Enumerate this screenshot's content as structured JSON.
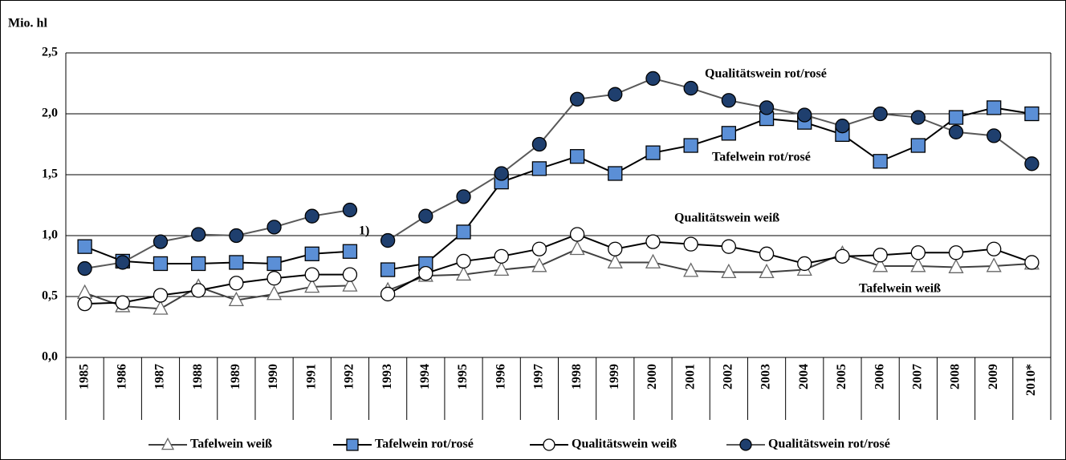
{
  "chart_data": {
    "type": "line",
    "y_label": "Mio. hl",
    "categories": [
      "1985",
      "1986",
      "1987",
      "1988",
      "1989",
      "1990",
      "1991",
      "1992",
      "1993",
      "1994",
      "1995",
      "1996",
      "1997",
      "1998",
      "1999",
      "2000",
      "2001",
      "2002",
      "2003",
      "2004",
      "2005",
      "2006",
      "2007",
      "2008",
      "2009",
      "2010*"
    ],
    "break_after": "1992",
    "series": [
      {
        "name": "Tafelwein weiß",
        "marker": "triangle",
        "color": "#ffffff",
        "line_color": "#404040",
        "values": [
          0.53,
          0.42,
          0.4,
          0.58,
          0.47,
          0.52,
          0.58,
          0.59,
          0.55,
          0.67,
          0.68,
          0.72,
          0.75,
          0.89,
          0.78,
          0.78,
          0.71,
          0.7,
          0.7,
          0.72,
          0.85,
          0.75,
          0.75,
          0.74,
          0.75,
          0.77
        ]
      },
      {
        "name": "Tafelwein rot/rosé",
        "marker": "square",
        "color": "#5b8fd6",
        "line_color": "#000000",
        "values": [
          0.91,
          0.79,
          0.77,
          0.77,
          0.78,
          0.77,
          0.85,
          0.87,
          0.72,
          0.77,
          1.03,
          1.44,
          1.55,
          1.65,
          1.51,
          1.68,
          1.74,
          1.84,
          1.96,
          1.93,
          1.83,
          1.61,
          1.74,
          1.97,
          2.05,
          2.0
        ]
      },
      {
        "name": "Qualitätswein weiß",
        "marker": "circle",
        "color": "#ffffff",
        "line_color": "#000000",
        "values": [
          0.44,
          0.45,
          0.51,
          0.55,
          0.61,
          0.65,
          0.68,
          0.68,
          0.52,
          0.69,
          0.79,
          0.83,
          0.89,
          1.01,
          0.89,
          0.95,
          0.93,
          0.91,
          0.85,
          0.77,
          0.83,
          0.84,
          0.86,
          0.86,
          0.89,
          0.78
        ]
      },
      {
        "name": "Qualitätswein rot/rosé",
        "marker": "circle",
        "color": "#1f3f6e",
        "line_color": "#595959",
        "values": [
          0.73,
          0.78,
          0.95,
          1.01,
          1.0,
          1.07,
          1.16,
          1.21,
          0.96,
          1.16,
          1.32,
          1.51,
          1.75,
          2.12,
          2.16,
          2.29,
          2.21,
          2.11,
          2.05,
          1.99,
          1.9,
          2.0,
          1.97,
          1.85,
          1.82,
          1.59
        ]
      }
    ],
    "annotations": [
      "Qualitätswein rot/rosé",
      "Tafelwein rot/rosé",
      "Qualitätswein weiß",
      "Tafelwein weiß",
      "1)"
    ],
    "ylim": [
      0,
      2.5
    ],
    "yticks": [
      {
        "value": 0,
        "label": "0,0"
      },
      {
        "value": 0.5,
        "label": "0,5"
      },
      {
        "value": 1,
        "label": "1,0"
      },
      {
        "value": 1.5,
        "label": "1,5"
      },
      {
        "value": 2,
        "label": "2,0"
      },
      {
        "value": 2.5,
        "label": "2,5"
      }
    ],
    "grid": true,
    "legend": "bottom"
  }
}
